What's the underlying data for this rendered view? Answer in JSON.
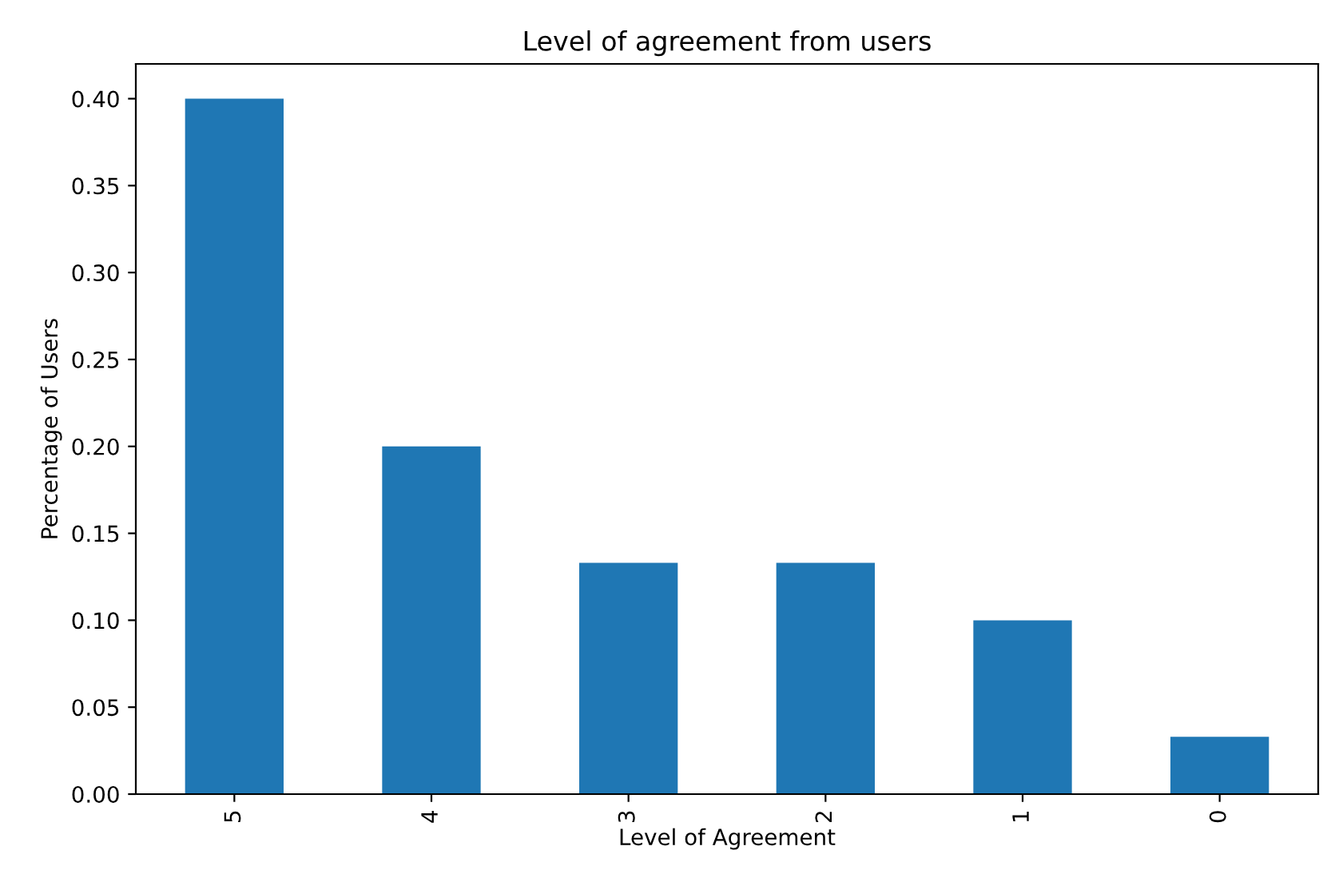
{
  "chart_data": {
    "type": "bar",
    "title": "Level of agreement from users",
    "xlabel": "Level of Agreement",
    "ylabel": "Percentage of Users",
    "categories": [
      "5",
      "4",
      "3",
      "2",
      "1",
      "0"
    ],
    "values": [
      0.4,
      0.2,
      0.133,
      0.133,
      0.1,
      0.033
    ],
    "color": "#1f77b4",
    "ylim": [
      0,
      0.42
    ],
    "yticks": [
      {
        "value": 0,
        "label": "0.00"
      },
      {
        "value": 0.05,
        "label": "0.05"
      },
      {
        "value": 0.1,
        "label": "0.10"
      },
      {
        "value": 0.15,
        "label": "0.15"
      },
      {
        "value": 0.2,
        "label": "0.20"
      },
      {
        "value": 0.25,
        "label": "0.25"
      },
      {
        "value": 0.3,
        "label": "0.30"
      },
      {
        "value": 0.35,
        "label": "0.35"
      },
      {
        "value": 0.4,
        "label": "0.40"
      }
    ],
    "grid": false
  }
}
